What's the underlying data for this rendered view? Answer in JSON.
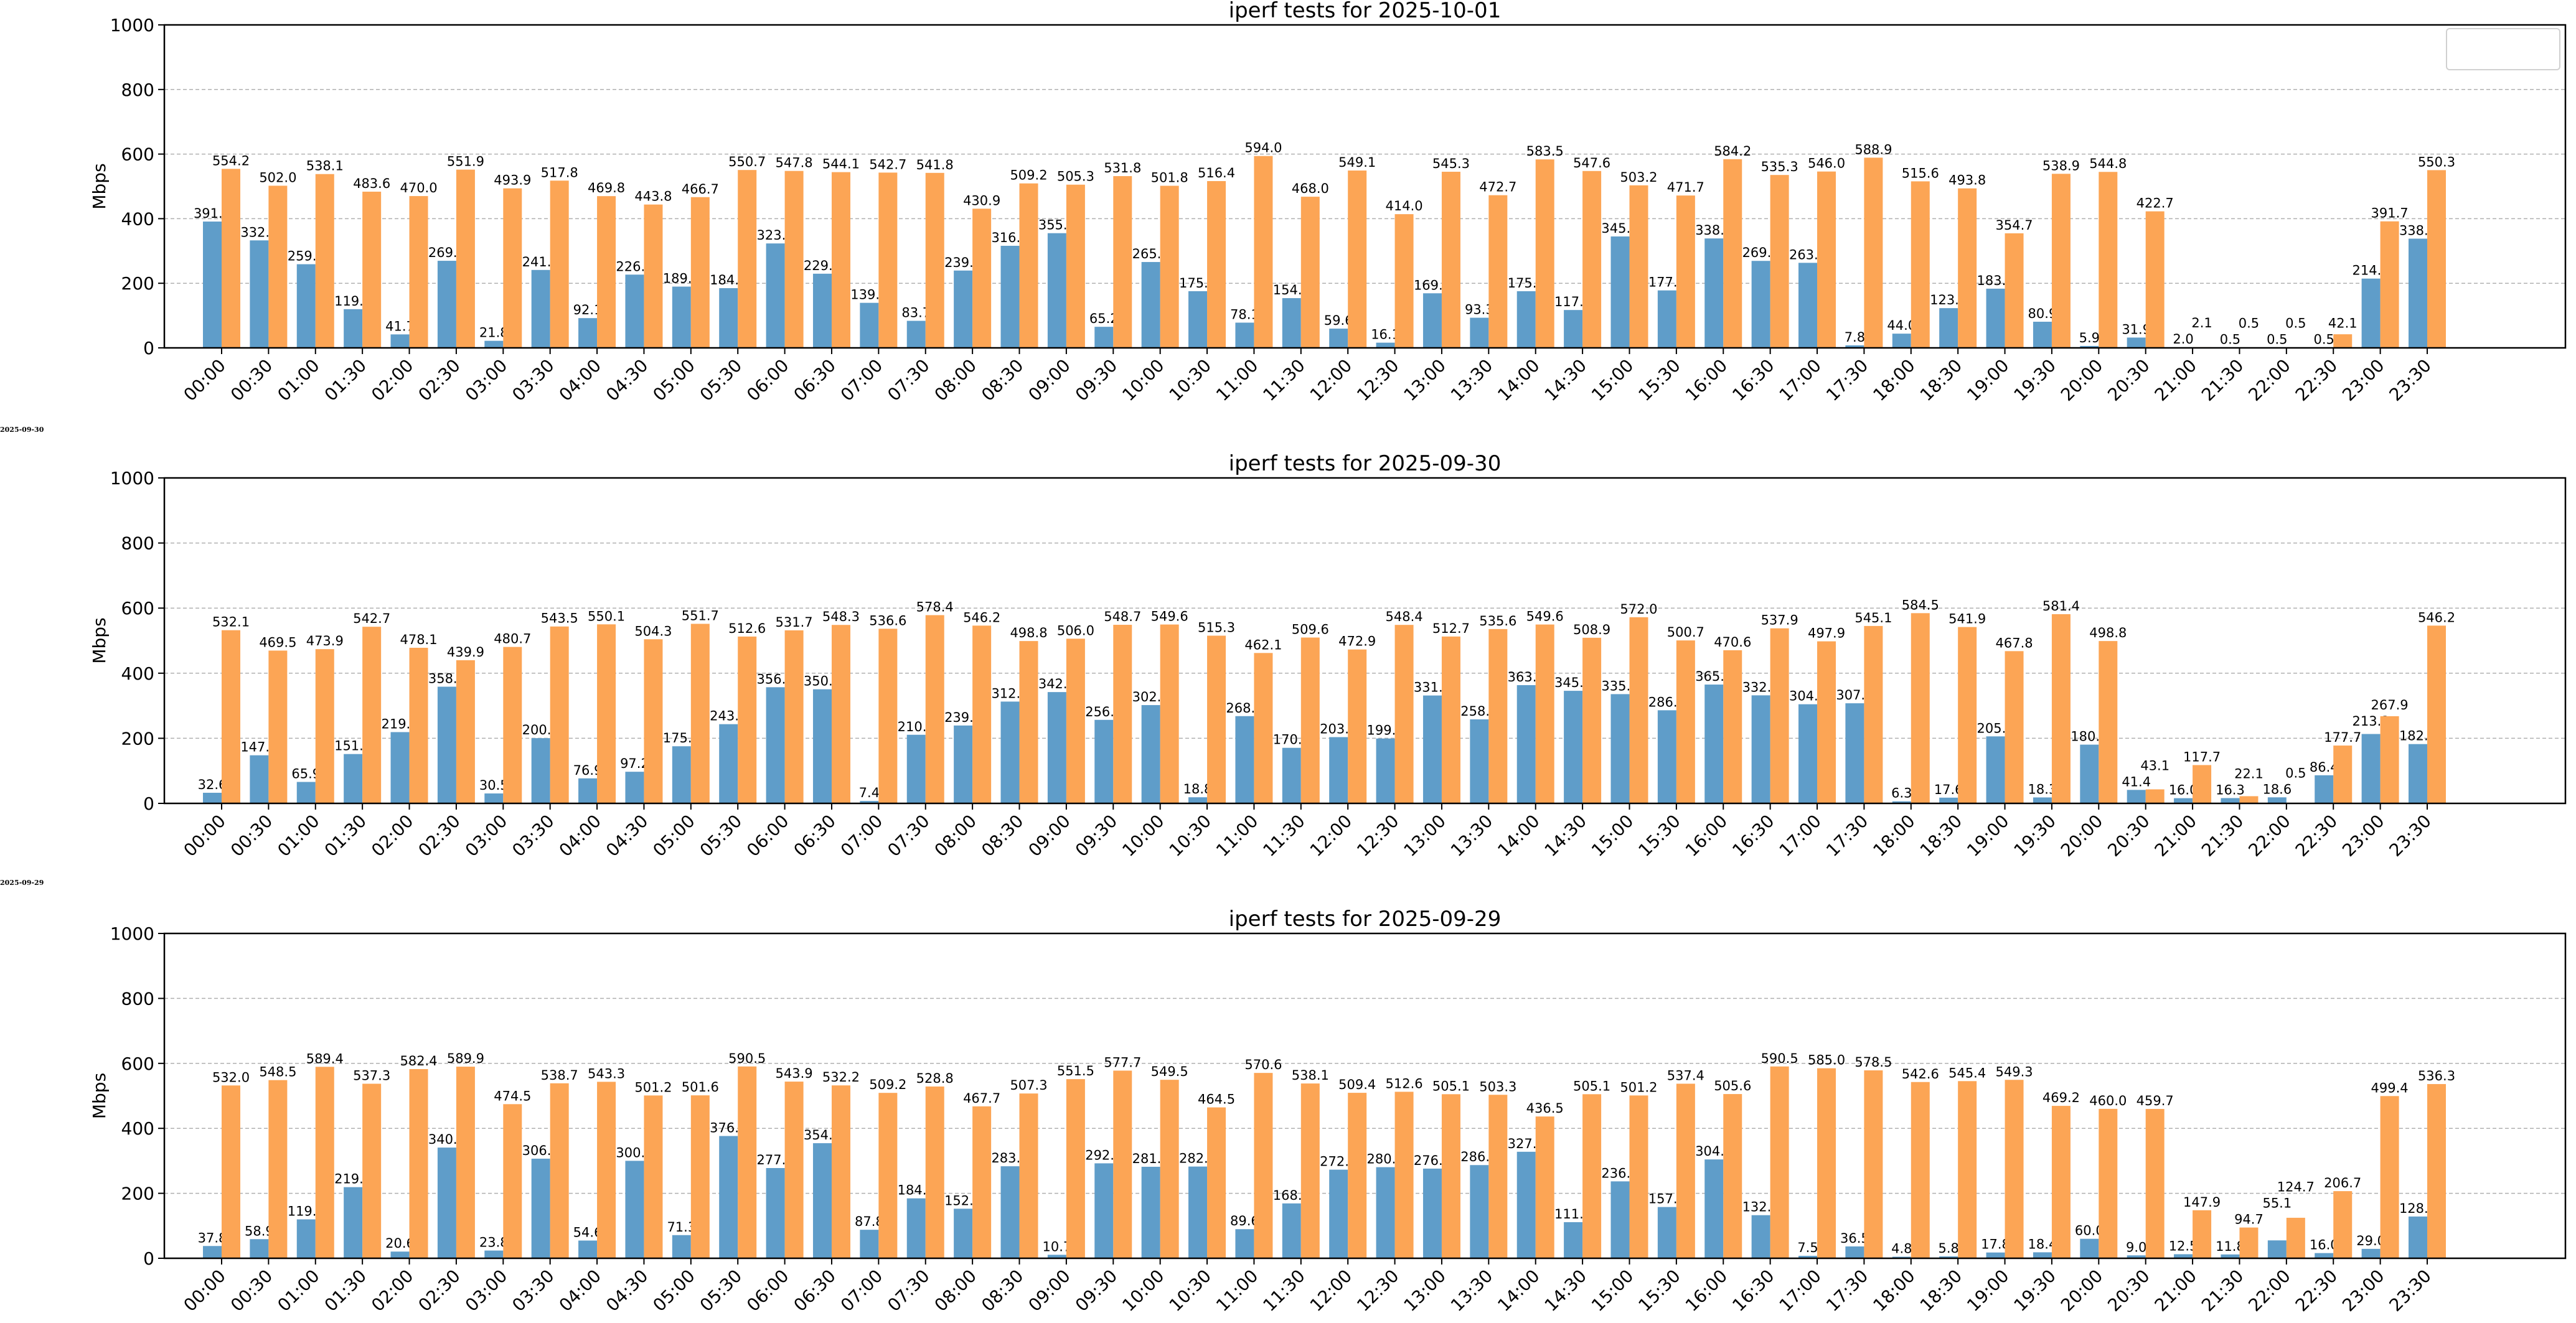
{
  "side_labels": [
    "2025-09-30",
    "2025-09-29"
  ],
  "colors": {
    "series_a": "#5f9dc9",
    "series_b": "#fca555"
  },
  "chart_data": [
    {
      "type": "bar",
      "title": "iperf tests for 2025-10-01",
      "xlabel": "",
      "ylabel": "Mbps",
      "ylim": [
        0,
        1000
      ],
      "yticks": [
        0,
        200,
        400,
        600,
        800,
        1000
      ],
      "grid": "y-dashed",
      "legend": "top-right (empty)",
      "categories": [
        "00:00",
        "00:30",
        "01:00",
        "01:30",
        "02:00",
        "02:30",
        "03:00",
        "03:30",
        "04:00",
        "04:30",
        "05:00",
        "05:30",
        "06:00",
        "06:30",
        "07:00",
        "07:30",
        "08:00",
        "08:30",
        "09:00",
        "09:30",
        "10:00",
        "10:30",
        "11:00",
        "11:30",
        "12:00",
        "12:30",
        "13:00",
        "13:30",
        "14:00",
        "14:30",
        "15:00",
        "15:30",
        "16:00",
        "16:30",
        "17:00",
        "17:30",
        "18:00",
        "18:30",
        "19:00",
        "19:30",
        "20:00",
        "20:30",
        "21:00",
        "21:30",
        "22:00",
        "22:30",
        "23:00",
        "23:30"
      ],
      "series": [
        {
          "color": "#5f9dc9",
          "values": [
            391.1,
            332.8,
            259.0,
            119.8,
            41.7,
            269.6,
            21.8,
            241.2,
            92.1,
            226.8,
            189.7,
            184.9,
            323.3,
            229.6,
            139.4,
            83.7,
            239.4,
            316.0,
            355.1,
            65.2,
            265.8,
            175.5,
            78.1,
            154.0,
            59.6,
            16.1,
            169.0,
            93.3,
            175.4,
            117.2,
            345.0,
            177.9,
            338.8,
            269.3,
            263.3,
            7.8,
            44.0,
            123.0,
            183.3,
            80.9,
            5.9,
            31.9,
            2.0,
            0.5,
            0.5,
            0.5,
            214.5,
            338.2
          ]
        },
        {
          "color": "#fca555",
          "values": [
            554.2,
            502.0,
            538.1,
            483.6,
            470.0,
            551.9,
            493.9,
            517.8,
            469.8,
            443.8,
            466.7,
            550.7,
            547.8,
            544.1,
            542.7,
            541.8,
            430.9,
            509.2,
            505.3,
            531.8,
            501.8,
            516.4,
            594.0,
            468.0,
            549.1,
            414.0,
            545.3,
            472.7,
            583.5,
            547.6,
            503.2,
            471.7,
            584.2,
            535.3,
            546.0,
            588.9,
            515.6,
            493.8,
            354.7,
            538.9,
            544.8,
            422.7,
            2.1,
            0.5,
            0.5,
            42.1,
            391.7,
            550.3
          ]
        }
      ]
    },
    {
      "type": "bar",
      "title": "iperf tests for 2025-09-30",
      "xlabel": "",
      "ylabel": "Mbps",
      "ylim": [
        0,
        1000
      ],
      "yticks": [
        0,
        200,
        400,
        600,
        800,
        1000
      ],
      "grid": "y-dashed",
      "categories": [
        "00:00",
        "00:30",
        "01:00",
        "01:30",
        "02:00",
        "02:30",
        "03:00",
        "03:30",
        "04:00",
        "04:30",
        "05:00",
        "05:30",
        "06:00",
        "06:30",
        "07:00",
        "07:30",
        "08:00",
        "08:30",
        "09:00",
        "09:30",
        "10:00",
        "10:30",
        "11:00",
        "11:30",
        "12:00",
        "12:30",
        "13:00",
        "13:30",
        "14:00",
        "14:30",
        "15:00",
        "15:30",
        "16:00",
        "16:30",
        "17:00",
        "17:30",
        "18:00",
        "18:30",
        "19:00",
        "19:30",
        "20:00",
        "20:30",
        "21:00",
        "21:30",
        "22:00",
        "22:30",
        "23:00",
        "23:30"
      ],
      "series": [
        {
          "color": "#5f9dc9",
          "values": [
            32.6,
            147.8,
            65.9,
            151.6,
            219.0,
            358.5,
            30.5,
            200.5,
            76.9,
            97.2,
            175.5,
            243.4,
            356.9,
            350.6,
            7.4,
            210.8,
            239.3,
            312.8,
            342.0,
            256.6,
            302.0,
            18.8,
            268.1,
            170.7,
            203.6,
            199.4,
            331.5,
            258.1,
            363.3,
            345.9,
            335.7,
            286.1,
            365.1,
            332.0,
            304.6,
            307.6,
            6.3,
            17.6,
            205.9,
            18.3,
            180.5,
            41.4,
            16.0,
            16.3,
            18.6,
            86.4,
            213.2,
            182.2
          ]
        },
        {
          "color": "#fca555",
          "values": [
            532.1,
            469.5,
            473.9,
            542.7,
            478.1,
            439.9,
            480.7,
            543.5,
            550.1,
            504.3,
            551.7,
            512.6,
            531.7,
            548.3,
            536.6,
            578.4,
            546.2,
            498.8,
            506.0,
            548.7,
            549.6,
            515.3,
            462.1,
            509.6,
            472.9,
            548.4,
            512.7,
            535.6,
            549.6,
            508.9,
            572.0,
            500.7,
            470.6,
            537.9,
            497.9,
            545.1,
            584.5,
            541.9,
            467.8,
            581.4,
            498.8,
            43.1,
            117.7,
            22.1,
            0.5,
            177.7,
            267.9,
            546.2
          ]
        }
      ]
    },
    {
      "type": "bar",
      "title": "iperf tests for 2025-09-29",
      "xlabel": "",
      "ylabel": "Mbps",
      "ylim": [
        0,
        1000
      ],
      "yticks": [
        0,
        200,
        400,
        600,
        800,
        1000
      ],
      "grid": "y-dashed",
      "categories": [
        "00:00",
        "00:30",
        "01:00",
        "01:30",
        "02:00",
        "02:30",
        "03:00",
        "03:30",
        "04:00",
        "04:30",
        "05:00",
        "05:30",
        "06:00",
        "06:30",
        "07:00",
        "07:30",
        "08:00",
        "08:30",
        "09:00",
        "09:30",
        "10:00",
        "10:30",
        "11:00",
        "11:30",
        "12:00",
        "12:30",
        "13:00",
        "13:30",
        "14:00",
        "14:30",
        "15:00",
        "15:30",
        "16:00",
        "16:30",
        "17:00",
        "17:30",
        "18:00",
        "18:30",
        "19:00",
        "19:30",
        "20:00",
        "20:30",
        "21:00",
        "21:30",
        "22:00",
        "22:30",
        "23:00",
        "23:30"
      ],
      "series": [
        {
          "color": "#5f9dc9",
          "values": [
            37.8,
            58.9,
            119.8,
            219.0,
            20.6,
            340.8,
            23.8,
            306.7,
            54.6,
            300.0,
            71.3,
            376.4,
            277.8,
            354.3,
            87.8,
            184.5,
            152.6,
            283.3,
            10.7,
            292.3,
            281.7,
            282.4,
            89.6,
            168.9,
            272.8,
            280.5,
            276.1,
            286.9,
            327.9,
            111.2,
            236.8,
            157.8,
            304.3,
            132.7,
            7.5,
            36.5,
            4.8,
            5.8,
            17.8,
            18.4,
            60.0,
            9.0,
            12.5,
            11.8,
            55.1,
            16.0,
            29.0,
            128.6
          ]
        },
        {
          "color": "#fca555",
          "values": [
            532.0,
            548.5,
            589.4,
            537.3,
            582.4,
            589.9,
            474.5,
            538.7,
            543.3,
            501.2,
            501.6,
            590.5,
            543.9,
            532.2,
            509.2,
            528.8,
            467.7,
            507.3,
            551.5,
            577.7,
            549.5,
            464.5,
            570.6,
            538.1,
            509.4,
            512.6,
            505.1,
            503.3,
            436.5,
            505.1,
            501.2,
            537.4,
            505.6,
            590.5,
            585.0,
            578.5,
            542.6,
            545.4,
            549.3,
            469.2,
            460.0,
            459.7,
            147.9,
            94.7,
            124.7,
            206.7,
            499.4,
            536.3
          ]
        }
      ]
    }
  ]
}
